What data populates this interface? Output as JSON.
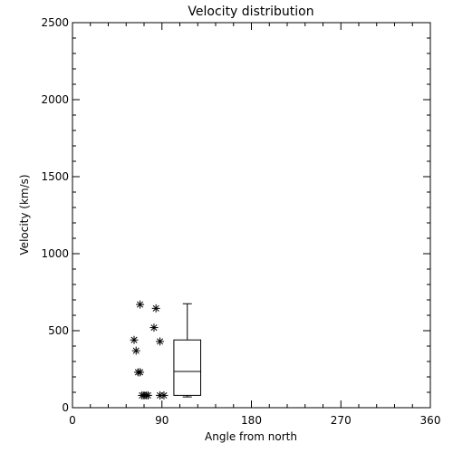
{
  "chart_data": {
    "type": "scatter",
    "title": "Velocity distribution",
    "xlabel": "Angle from north",
    "ylabel": "Velocity (km/s)",
    "xlim": [
      0,
      360
    ],
    "ylim": [
      0,
      2500
    ],
    "x_ticks": [
      0,
      90,
      180,
      270,
      360
    ],
    "y_ticks": [
      0,
      500,
      1000,
      1500,
      2000,
      2500
    ],
    "grid": false,
    "points": [
      {
        "x": 68,
        "y": 670
      },
      {
        "x": 84,
        "y": 645
      },
      {
        "x": 82,
        "y": 520
      },
      {
        "x": 62,
        "y": 440
      },
      {
        "x": 88,
        "y": 430
      },
      {
        "x": 64,
        "y": 370
      },
      {
        "x": 66,
        "y": 230
      },
      {
        "x": 68,
        "y": 230
      },
      {
        "x": 70,
        "y": 80
      },
      {
        "x": 72,
        "y": 80
      },
      {
        "x": 74,
        "y": 80
      },
      {
        "x": 76,
        "y": 80
      },
      {
        "x": 88,
        "y": 80
      },
      {
        "x": 92,
        "y": 80
      }
    ],
    "boxplot": {
      "x_left": 102,
      "x_right": 129,
      "min": 70,
      "q1": 80,
      "median": 235,
      "q3": 440,
      "max": 675
    }
  }
}
